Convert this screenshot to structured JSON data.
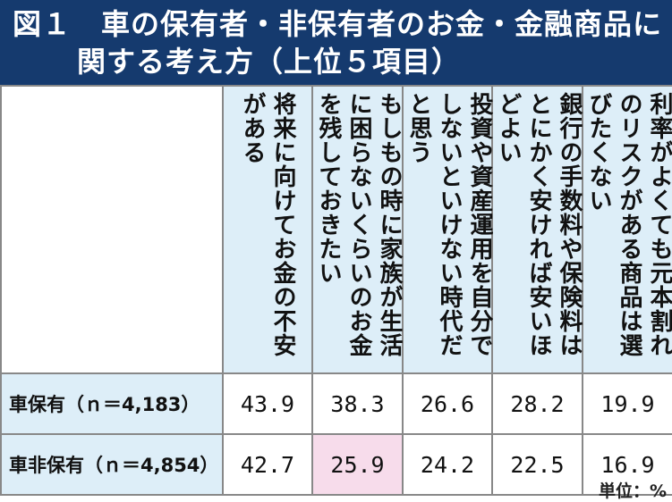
{
  "title": {
    "line1": "図１　車の保有者・非保有者のお金・金融商品に",
    "line2": "関する考え方（上位５項目）"
  },
  "columns": [
    {
      "label": "将来に向けてお金の不安がある"
    },
    {
      "label": "もしもの時に家族が生活に困らないくらいのお金を残しておきたい"
    },
    {
      "label": "投資や資産運用を自分でしないといけない時代だと思う"
    },
    {
      "label": "銀行の手数料や保険料はとにかく安ければ安いほどよい"
    },
    {
      "label": "利率がよくても元本割れのリスクがある商品は選びたくない"
    }
  ],
  "rows": [
    {
      "label": "車保有（ｎ＝4,183）",
      "values": [
        "43.9",
        "38.3",
        "26.6",
        "28.2",
        "19.9"
      ]
    },
    {
      "label": "車非保有（ｎ＝4,854）",
      "values": [
        "42.7",
        "25.9",
        "24.2",
        "22.5",
        "16.9"
      ]
    }
  ],
  "highlight": {
    "row": 1,
    "col": 1,
    "color": "#f7dceb"
  },
  "colors": {
    "header_bg": "#153a6e",
    "label_bg": "#ddeef8"
  },
  "unit": "単位：%"
}
